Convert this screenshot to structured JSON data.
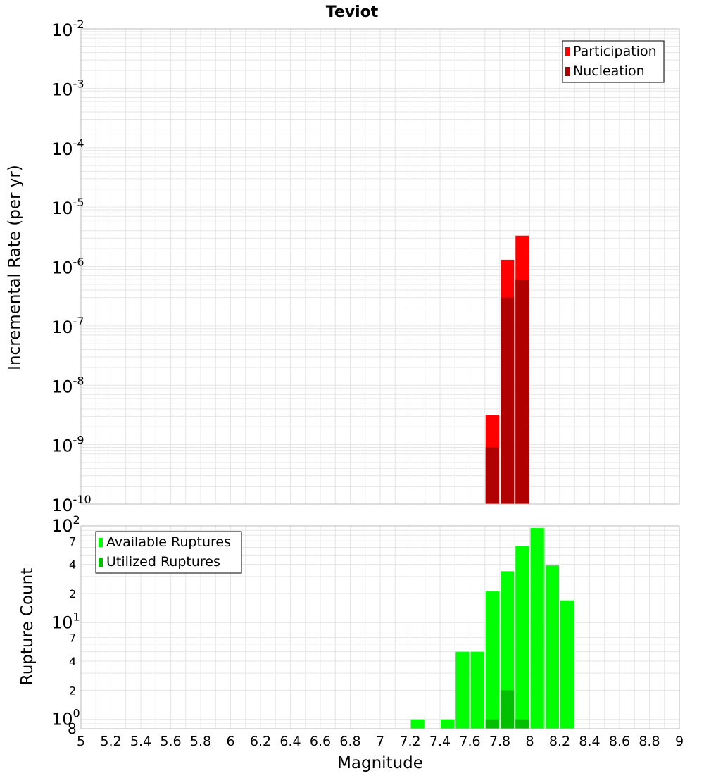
{
  "title": "Teviot",
  "colors": {
    "participation": "#ff0000",
    "nucleation": "#b00000",
    "available": "#00ff00",
    "utilized": "#00c000",
    "grid": "#e6e6e6",
    "frame": "#bdbdbd"
  },
  "x_axis": {
    "label": "Magnitude",
    "range": [
      5,
      9
    ],
    "ticks": [
      "5",
      "5.2",
      "5.4",
      "5.6",
      "5.8",
      "6",
      "6.2",
      "6.4",
      "6.6",
      "6.8",
      "7",
      "7.2",
      "7.4",
      "7.6",
      "7.8",
      "8",
      "8.2",
      "8.4",
      "8.6",
      "8.8",
      "9"
    ]
  },
  "top_panel": {
    "ylabel": "Incremental Rate (per yr)",
    "yscale": "log",
    "ylim": [
      1e-10,
      0.01
    ],
    "tick_labels": [
      {
        "base": "10",
        "exp": "-2"
      },
      {
        "base": "10",
        "exp": "-3"
      },
      {
        "base": "10",
        "exp": "-4"
      },
      {
        "base": "10",
        "exp": "-5"
      },
      {
        "base": "10",
        "exp": "-6"
      },
      {
        "base": "10",
        "exp": "-7"
      },
      {
        "base": "10",
        "exp": "-8"
      },
      {
        "base": "10",
        "exp": "-9"
      },
      {
        "base": "10",
        "exp": "-10"
      }
    ],
    "legend": [
      "Participation",
      "Nucleation"
    ],
    "legend_placement": "top-right"
  },
  "bottom_panel": {
    "ylabel": "Rupture Count",
    "yscale": "log",
    "ylim": [
      0.8,
      100
    ],
    "major_labels": [
      {
        "base": "10",
        "exp": "2"
      },
      {
        "base": "10",
        "exp": "1"
      },
      {
        "base": "10",
        "exp": "0"
      }
    ],
    "minor_labels": [
      "7",
      "4",
      "2",
      "7",
      "4",
      "2",
      "8"
    ],
    "legend": [
      "Available Ruptures",
      "Utilized Ruptures"
    ],
    "legend_placement": "top-left"
  },
  "chart_data": [
    {
      "type": "bar",
      "title": "Teviot",
      "xlabel": "Magnitude",
      "ylabel": "Incremental Rate (per yr)",
      "yscale": "log",
      "ylim": [
        1e-10,
        0.01
      ],
      "xlim": [
        5,
        9
      ],
      "bin_width": 0.1,
      "x": [
        7.75,
        7.85,
        7.95
      ],
      "series": [
        {
          "name": "Participation",
          "values": [
            3.2e-09,
            1.3e-06,
            3.3e-06
          ]
        },
        {
          "name": "Nucleation",
          "values": [
            9e-10,
            3e-07,
            6e-07
          ]
        }
      ],
      "legend": "top-right"
    },
    {
      "type": "bar",
      "xlabel": "Magnitude",
      "ylabel": "Rupture Count",
      "yscale": "log",
      "ylim": [
        0.8,
        100
      ],
      "xlim": [
        5,
        9
      ],
      "bin_width": 0.1,
      "x": [
        7.25,
        7.45,
        7.55,
        7.65,
        7.75,
        7.85,
        7.95,
        8.05,
        8.15,
        8.25
      ],
      "series": [
        {
          "name": "Available Ruptures",
          "values": [
            1,
            1,
            5,
            5,
            21,
            34,
            62,
            95,
            39,
            17
          ]
        },
        {
          "name": "Utilized Ruptures",
          "values": [
            0,
            0,
            0,
            0,
            1,
            2,
            1,
            0,
            0,
            0
          ]
        }
      ],
      "legend": "top-left"
    }
  ]
}
